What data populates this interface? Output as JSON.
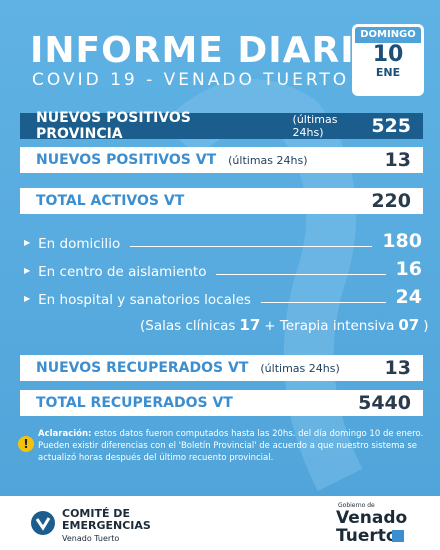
{
  "header": {
    "title": "INFORME DIARIO",
    "subtitle": "COVID 19 - VENADO TUERTO",
    "calendar": {
      "weekday": "DOMINGO",
      "day": "10",
      "month": "ENE"
    }
  },
  "rows": [
    {
      "label": "NUEVOS POSITIVOS PROVINCIA",
      "note": "(últimas 24hs)",
      "value": "525"
    },
    {
      "label": "NUEVOS POSITIVOS VT",
      "note": "(últimas 24hs)",
      "value": "13"
    },
    {
      "label": "TOTAL ACTIVOS VT",
      "value": "220"
    },
    {
      "label": "NUEVOS RECUPERADOS VT",
      "note": "(últimas 24hs)",
      "value": "13"
    },
    {
      "label": "TOTAL RECUPERADOS VT",
      "value": "5440"
    }
  ],
  "breakdown": [
    {
      "label": "En domicilio",
      "value": "180"
    },
    {
      "label": "En centro de aislamiento",
      "value": "16"
    },
    {
      "label": "En hospital y sanatorios locales",
      "value": "24"
    }
  ],
  "detail": {
    "ward_label": "(Salas clínicas",
    "ward_value": "17",
    "icu_label": "+ Terapia intensiva",
    "icu_value": "07",
    "close": ")"
  },
  "note": {
    "label": "Aclaración:",
    "text": "estos datos fueron computados hasta las 20hs. del día domingo 10 de enero. Pueden existir diferencias con el 'Boletín Provincial' de acuerdo a que nuestro sistema se actualizó horas después del último recuento provincial."
  },
  "footer": {
    "committee": [
      "COMITÉ DE",
      "EMERGENCIAS",
      "Venado Tuerto"
    ],
    "government": [
      "Gobierno de",
      "Venado",
      "Tuerto"
    ]
  }
}
